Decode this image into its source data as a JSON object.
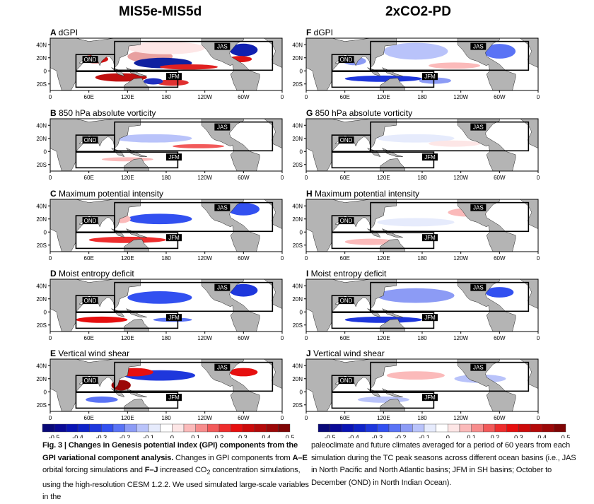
{
  "columns": [
    {
      "title": "MIS5e-MIS5d",
      "panels": [
        {
          "letter": "A",
          "name": "dGPI"
        },
        {
          "letter": "B",
          "name": "850 hPa absolute vorticity"
        },
        {
          "letter": "C",
          "name": "Maximum potential intensity"
        },
        {
          "letter": "D",
          "name": "Moist entropy deficit"
        },
        {
          "letter": "E",
          "name": "Vertical wind shear"
        }
      ]
    },
    {
      "title": "2xCO2-PD",
      "panels": [
        {
          "letter": "F",
          "name": "dGPI"
        },
        {
          "letter": "G",
          "name": "850 hPa absolute vorticity"
        },
        {
          "letter": "H",
          "name": "Maximum potential intensity"
        },
        {
          "letter": "I",
          "name": "Moist entropy deficit"
        },
        {
          "letter": "J",
          "name": "Vertical wind shear"
        }
      ]
    }
  ],
  "map": {
    "lat_ticks": [
      "40N",
      "20N",
      "0",
      "20S"
    ],
    "lon_ticks": [
      "0",
      "60E",
      "120E",
      "180",
      "120W",
      "60W",
      "0"
    ],
    "boxes": [
      "OND",
      "JAS",
      "JFM"
    ],
    "land_color": "#b4b4b4"
  },
  "colorbar": {
    "ticks": [
      "-0.5",
      "-0.4",
      "-0.3",
      "-0.2",
      "-0.1",
      "0",
      "0.1",
      "0.2",
      "0.3",
      "0.4",
      "0.5"
    ],
    "colors": [
      "#0a0a78",
      "#0a0a96",
      "#0a14b4",
      "#0f23c8",
      "#1e37dc",
      "#3250f0",
      "#5a73f5",
      "#8c9bf5",
      "#b9c3fa",
      "#e6ebfc",
      "#ffffff",
      "#fde6e6",
      "#fbbaba",
      "#f78c8c",
      "#f25a5a",
      "#ee2d2d",
      "#e60f0f",
      "#cc0a0a",
      "#b40a0a",
      "#9c0808",
      "#7f0505"
    ]
  },
  "caption": {
    "fig": "Fig. 3 | ",
    "bold": "Changes in Genesis potential index (GPI) components from the GPI variational component analysis.",
    "text1": " Changes in GPI components from ",
    "ae": "A–E",
    "text2": " orbital forcing simulations and ",
    "fj": "F–J",
    "text3": " increased CO",
    "sub": "2",
    "text4": " concentration simulations, using the high-resolution CESM 1.2.2. We used simulated large-scale variables in the",
    "right": "paleoclimate and future climates averaged for a period of 60 years from each simulation during the TC peak seasons across different ocean basins (i.e., JAS in North Pacific and North Atlantic basins; JFM in SH basins; October to December (OND) in North Indian Ocean)."
  }
}
